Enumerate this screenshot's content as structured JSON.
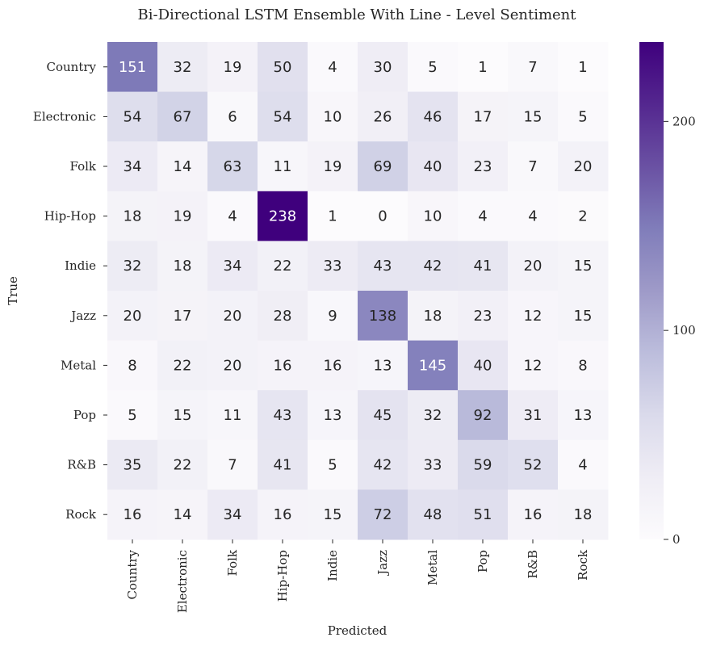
{
  "chart_data": {
    "type": "heatmap",
    "title": "Bi-Directional LSTM Ensemble With Line - Level Sentiment",
    "xlabel": "Predicted",
    "ylabel": "True",
    "x_categories": [
      "Country",
      "Electronic",
      "Folk",
      "Hip-Hop",
      "Indie",
      "Jazz",
      "Metal",
      "Pop",
      "R&B",
      "Rock"
    ],
    "y_categories": [
      "Country",
      "Electronic",
      "Folk",
      "Hip-Hop",
      "Indie",
      "Jazz",
      "Metal",
      "Pop",
      "R&B",
      "Rock"
    ],
    "values": [
      [
        151,
        32,
        19,
        50,
        4,
        30,
        5,
        1,
        7,
        1
      ],
      [
        54,
        67,
        6,
        54,
        10,
        26,
        46,
        17,
        15,
        5
      ],
      [
        34,
        14,
        63,
        11,
        19,
        69,
        40,
        23,
        7,
        20
      ],
      [
        18,
        19,
        4,
        238,
        1,
        0,
        10,
        4,
        4,
        2
      ],
      [
        32,
        18,
        34,
        22,
        33,
        43,
        42,
        41,
        20,
        15
      ],
      [
        20,
        17,
        20,
        28,
        9,
        138,
        18,
        23,
        12,
        15
      ],
      [
        8,
        22,
        20,
        16,
        16,
        13,
        145,
        40,
        12,
        8
      ],
      [
        5,
        15,
        11,
        43,
        13,
        45,
        32,
        92,
        31,
        13
      ],
      [
        35,
        22,
        7,
        41,
        5,
        42,
        33,
        59,
        52,
        4
      ],
      [
        16,
        14,
        34,
        16,
        15,
        72,
        48,
        51,
        16,
        18
      ]
    ],
    "colorbar": {
      "min": 0,
      "max": 238,
      "ticks": [
        0,
        100,
        200
      ],
      "colormap": "Purples",
      "colors": [
        "#fcfbfd",
        "#efedf5",
        "#dadaeb",
        "#bcbddc",
        "#9e9ac8",
        "#807dba",
        "#6a51a3",
        "#54278f",
        "#3f007d"
      ]
    },
    "annotation_colors": {
      "dark": "#262626",
      "light": "#ffffff"
    }
  }
}
